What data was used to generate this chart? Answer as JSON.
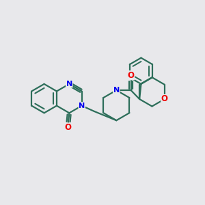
{
  "bg_color": "#e8e8eb",
  "bond_color": "#2d6e5a",
  "bond_lw": 1.6,
  "atom_N_color": "#0000ee",
  "atom_O_color": "#ee0000",
  "figsize": [
    3.0,
    3.0
  ],
  "dpi": 100,
  "xlim": [
    0,
    10
  ],
  "ylim": [
    0,
    10
  ]
}
